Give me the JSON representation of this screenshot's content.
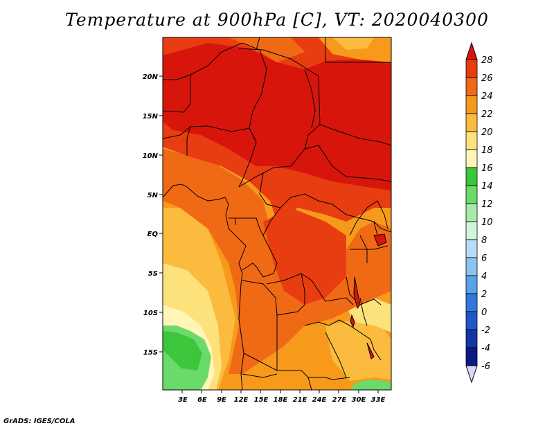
{
  "title": "Temperature at 900hPa [C], VT: 2020040300",
  "credit": "GrADS: IGES/COLA",
  "map": {
    "lon_range": [
      0,
      35
    ],
    "lat_range": [
      -20,
      24
    ],
    "lon_ticks": [
      {
        "value": 3,
        "label": "3E"
      },
      {
        "value": 6,
        "label": "6E"
      },
      {
        "value": 9,
        "label": "9E"
      },
      {
        "value": 12,
        "label": "12E"
      },
      {
        "value": 15,
        "label": "15E"
      },
      {
        "value": 18,
        "label": "18E"
      },
      {
        "value": 21,
        "label": "21E"
      },
      {
        "value": 24,
        "label": "24E"
      },
      {
        "value": 27,
        "label": "27E"
      },
      {
        "value": 30,
        "label": "30E"
      },
      {
        "value": 33,
        "label": "33E"
      }
    ],
    "lat_ticks": [
      {
        "value": 20,
        "label": "20N"
      },
      {
        "value": 15,
        "label": "15N"
      },
      {
        "value": 10,
        "label": "10N"
      },
      {
        "value": 5,
        "label": "5N"
      },
      {
        "value": 0,
        "label": "EQ"
      },
      {
        "value": -5,
        "label": "5S"
      },
      {
        "value": -10,
        "label": "10S"
      },
      {
        "value": -15,
        "label": "15S"
      }
    ]
  },
  "colorbar": {
    "levels": [
      {
        "value": "28",
        "color": "#d8150b"
      },
      {
        "value": "26",
        "color": "#e83d10"
      },
      {
        "value": "24",
        "color": "#f06a15"
      },
      {
        "value": "22",
        "color": "#f79a1c"
      },
      {
        "value": "20",
        "color": "#fbbb3e"
      },
      {
        "value": "18",
        "color": "#fde17a"
      },
      {
        "value": "16",
        "color": "#fff6b8"
      },
      {
        "value": "14",
        "color": "#3cc63c"
      },
      {
        "value": "12",
        "color": "#6ada6a"
      },
      {
        "value": "10",
        "color": "#a6ebaa"
      },
      {
        "value": "8",
        "color": "#d0f5d8"
      },
      {
        "value": "6",
        "color": "#b8dcf8"
      },
      {
        "value": "4",
        "color": "#8ec2f0"
      },
      {
        "value": "2",
        "color": "#5aa2e8"
      },
      {
        "value": "0",
        "color": "#3378de"
      },
      {
        "value": "-2",
        "color": "#1e58c8"
      },
      {
        "value": "-4",
        "color": "#1238a8"
      },
      {
        "value": "-6",
        "color": "#0a1a82"
      }
    ],
    "top_arrow_color": "#d8150b",
    "bottom_arrow_color": "#dcd7f7"
  }
}
